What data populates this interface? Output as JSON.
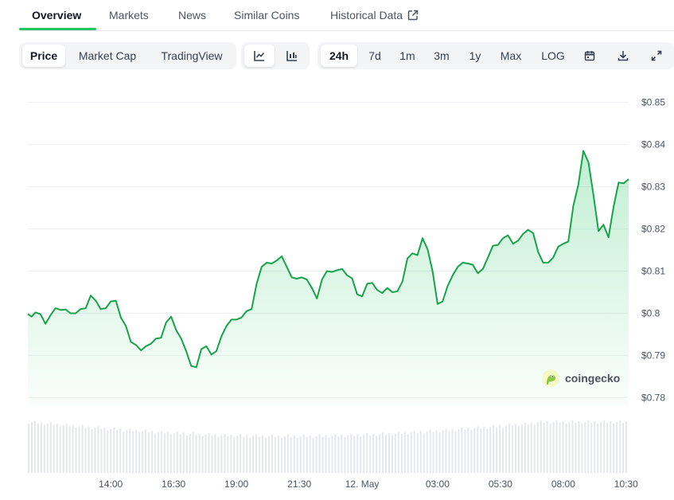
{
  "tabs": [
    {
      "label": "Overview",
      "active": true
    },
    {
      "label": "Markets",
      "active": false
    },
    {
      "label": "News",
      "active": false
    },
    {
      "label": "Similar Coins",
      "active": false
    },
    {
      "label": "Historical Data",
      "active": false,
      "icon": "external-link-icon"
    }
  ],
  "chart_types": [
    {
      "label": "Price",
      "selected": true
    },
    {
      "label": "Market Cap",
      "selected": false
    },
    {
      "label": "TradingView",
      "selected": false
    }
  ],
  "chart_styles": [
    {
      "icon": "line-chart-icon",
      "selected": true
    },
    {
      "icon": "candlestick-chart-icon",
      "selected": false
    }
  ],
  "ranges": [
    {
      "label": "24h",
      "selected": true
    },
    {
      "label": "7d",
      "selected": false
    },
    {
      "label": "1m",
      "selected": false
    },
    {
      "label": "3m",
      "selected": false
    },
    {
      "label": "1y",
      "selected": false
    },
    {
      "label": "Max",
      "selected": false
    },
    {
      "label": "LOG",
      "selected": false
    }
  ],
  "toolbar_icons": [
    "calendar-icon",
    "download-icon",
    "fullscreen-icon"
  ],
  "watermark": {
    "text": "coingecko",
    "icon": "gecko-logo-icon"
  },
  "colors": {
    "line": "#16a34a",
    "fill": "#22c55e",
    "volume": "#e5e7eb",
    "active_tab": "#22c55e"
  },
  "chart_data": {
    "type": "area",
    "y_ticks": [
      "$0.85",
      "$0.84",
      "$0.83",
      "$0.82",
      "$0.81",
      "$0.8",
      "$0.79",
      "$0.78"
    ],
    "y_tick_values": [
      0.85,
      0.84,
      0.83,
      0.82,
      0.81,
      0.8,
      0.79,
      0.78
    ],
    "ylim": [
      0.778,
      0.852
    ],
    "x_ticks": [
      "14:00",
      "16:30",
      "19:00",
      "21:30",
      "12. May",
      "03:00",
      "05:30",
      "08:00",
      "10:30"
    ],
    "x_tick_hours": [
      14.0,
      16.5,
      19.0,
      21.5,
      24.0,
      27.0,
      29.5,
      32.0,
      34.5
    ],
    "xlim_hours": [
      10.7,
      34.6
    ],
    "grid": true,
    "legend": "none",
    "series": [
      {
        "points": [
          [
            10.7,
            0.7998
          ],
          [
            10.85,
            0.7992
          ],
          [
            11.0,
            0.8002
          ],
          [
            11.2,
            0.7998
          ],
          [
            11.4,
            0.7975
          ],
          [
            11.6,
            0.7995
          ],
          [
            11.8,
            0.8012
          ],
          [
            12.0,
            0.8008
          ],
          [
            12.2,
            0.8009
          ],
          [
            12.4,
            0.8
          ],
          [
            12.6,
            0.8
          ],
          [
            12.8,
            0.801
          ],
          [
            13.0,
            0.8012
          ],
          [
            13.2,
            0.8042
          ],
          [
            13.4,
            0.803
          ],
          [
            13.6,
            0.801
          ],
          [
            13.8,
            0.8012
          ],
          [
            14.0,
            0.8028
          ],
          [
            14.2,
            0.803
          ],
          [
            14.4,
            0.799
          ],
          [
            14.6,
            0.797
          ],
          [
            14.8,
            0.7932
          ],
          [
            15.0,
            0.7925
          ],
          [
            15.2,
            0.7912
          ],
          [
            15.4,
            0.7922
          ],
          [
            15.6,
            0.7928
          ],
          [
            15.8,
            0.794
          ],
          [
            16.0,
            0.7942
          ],
          [
            16.2,
            0.7978
          ],
          [
            16.4,
            0.7992
          ],
          [
            16.6,
            0.796
          ],
          [
            16.8,
            0.794
          ],
          [
            17.0,
            0.791
          ],
          [
            17.2,
            0.7875
          ],
          [
            17.4,
            0.7872
          ],
          [
            17.6,
            0.7915
          ],
          [
            17.8,
            0.7922
          ],
          [
            18.0,
            0.7902
          ],
          [
            18.2,
            0.791
          ],
          [
            18.4,
            0.7945
          ],
          [
            18.6,
            0.797
          ],
          [
            18.8,
            0.7985
          ],
          [
            19.0,
            0.7985
          ],
          [
            19.2,
            0.799
          ],
          [
            19.4,
            0.8005
          ],
          [
            19.6,
            0.801
          ],
          [
            19.8,
            0.807
          ],
          [
            20.0,
            0.811
          ],
          [
            20.2,
            0.812
          ],
          [
            20.4,
            0.8118
          ],
          [
            20.6,
            0.8125
          ],
          [
            20.8,
            0.8135
          ],
          [
            21.0,
            0.811
          ],
          [
            21.2,
            0.8085
          ],
          [
            21.4,
            0.8082
          ],
          [
            21.6,
            0.8085
          ],
          [
            21.8,
            0.808
          ],
          [
            22.0,
            0.806
          ],
          [
            22.2,
            0.8035
          ],
          [
            22.4,
            0.808
          ],
          [
            22.6,
            0.81
          ],
          [
            22.8,
            0.8098
          ],
          [
            23.0,
            0.8102
          ],
          [
            23.2,
            0.8105
          ],
          [
            23.4,
            0.809
          ],
          [
            23.6,
            0.8083
          ],
          [
            23.8,
            0.8045
          ],
          [
            24.0,
            0.804
          ],
          [
            24.2,
            0.807
          ],
          [
            24.4,
            0.8072
          ],
          [
            24.6,
            0.8055
          ],
          [
            24.8,
            0.8048
          ],
          [
            25.0,
            0.806
          ],
          [
            25.2,
            0.805
          ],
          [
            25.4,
            0.8052
          ],
          [
            25.6,
            0.8075
          ],
          [
            25.8,
            0.813
          ],
          [
            26.0,
            0.8142
          ],
          [
            26.2,
            0.8138
          ],
          [
            26.4,
            0.8178
          ],
          [
            26.6,
            0.8152
          ],
          [
            26.8,
            0.81
          ],
          [
            27.0,
            0.8022
          ],
          [
            27.2,
            0.8028
          ],
          [
            27.4,
            0.8065
          ],
          [
            27.6,
            0.809
          ],
          [
            27.8,
            0.811
          ],
          [
            28.0,
            0.812
          ],
          [
            28.2,
            0.8118
          ],
          [
            28.4,
            0.8115
          ],
          [
            28.6,
            0.8095
          ],
          [
            28.8,
            0.8105
          ],
          [
            29.0,
            0.8132
          ],
          [
            29.2,
            0.816
          ],
          [
            29.4,
            0.8162
          ],
          [
            29.6,
            0.8178
          ],
          [
            29.8,
            0.8185
          ],
          [
            30.0,
            0.8165
          ],
          [
            30.2,
            0.8172
          ],
          [
            30.4,
            0.8188
          ],
          [
            30.6,
            0.8198
          ],
          [
            30.8,
            0.819
          ],
          [
            31.0,
            0.8145
          ],
          [
            31.2,
            0.812
          ],
          [
            31.4,
            0.812
          ],
          [
            31.6,
            0.8132
          ],
          [
            31.8,
            0.8158
          ],
          [
            32.0,
            0.8165
          ],
          [
            32.2,
            0.817
          ],
          [
            32.4,
            0.8255
          ],
          [
            32.6,
            0.8305
          ],
          [
            32.8,
            0.8385
          ],
          [
            33.0,
            0.8358
          ],
          [
            33.2,
            0.828
          ],
          [
            33.4,
            0.8195
          ],
          [
            33.6,
            0.821
          ],
          [
            33.8,
            0.818
          ],
          [
            34.0,
            0.8252
          ],
          [
            34.2,
            0.831
          ],
          [
            34.4,
            0.8308
          ],
          [
            34.6,
            0.8318
          ]
        ]
      }
    ]
  }
}
